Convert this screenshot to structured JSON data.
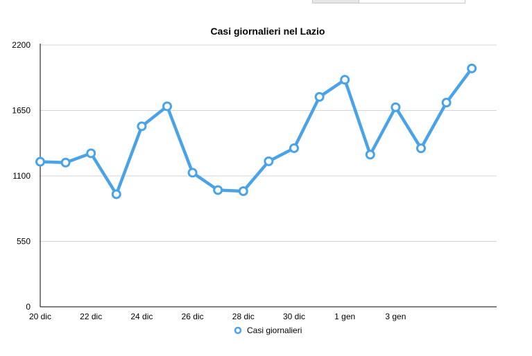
{
  "chart_data": {
    "type": "line",
    "title": "Casi giornalieri nel Lazio",
    "xlabel": "",
    "ylabel": "",
    "categories": [
      "20 dic",
      "21 dic",
      "22 dic",
      "23 dic",
      "24 dic",
      "25 dic",
      "26 dic",
      "27 dic",
      "28 dic",
      "29 dic",
      "30 dic",
      "31 dic",
      "1 gen",
      "2 gen",
      "3 gen",
      "4 gen",
      "5 gen",
      "6 gen"
    ],
    "x_tick_labels": [
      "20 dic",
      "22 dic",
      "24 dic",
      "26 dic",
      "28 dic",
      "30 dic",
      "1 gen",
      "3 gen"
    ],
    "x_tick_indices": [
      0,
      2,
      4,
      6,
      8,
      10,
      12,
      14
    ],
    "y_ticks": [
      0,
      550,
      1100,
      1650,
      2200
    ],
    "ylim": [
      0,
      2200
    ],
    "grid": true,
    "legend_position": "bottom",
    "series": [
      {
        "name": "Casi giornalieri",
        "color": "#4aa3e8",
        "values": [
          1219,
          1212,
          1290,
          946,
          1517,
          1685,
          1127,
          981,
          972,
          1223,
          1333,
          1764,
          1908,
          1279,
          1677,
          1332,
          1716,
          2003
        ]
      }
    ]
  }
}
